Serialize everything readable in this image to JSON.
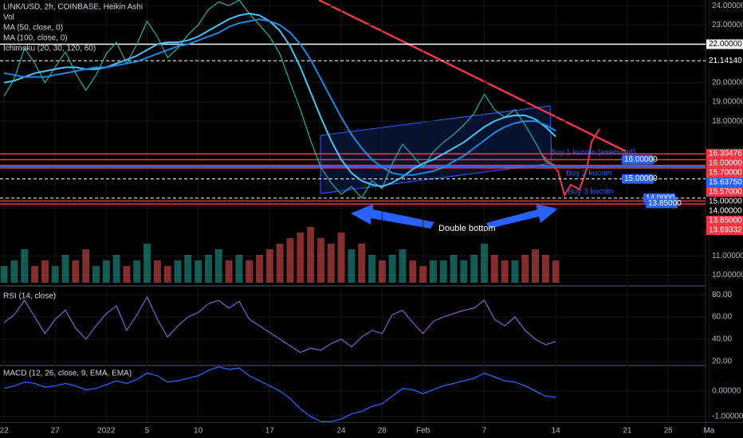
{
  "chart_data": [
    {
      "type": "line",
      "title": "LINK/USD, 2h, COINBASE, Heikin Ashi",
      "x": [
        0,
        1,
        2,
        3,
        4,
        5,
        6,
        7,
        8,
        9,
        10,
        11,
        12,
        13,
        14,
        15,
        16,
        17,
        18,
        19,
        20,
        21,
        22,
        23,
        24,
        25,
        26,
        27,
        28,
        29,
        30,
        31,
        32,
        33,
        34,
        35,
        36,
        37,
        38,
        39,
        40,
        41,
        42,
        43,
        44,
        45,
        46,
        47,
        48,
        49,
        50,
        51,
        52,
        53,
        54
      ],
      "xlim": [
        -0.4,
        68.5
      ],
      "xticks": [
        {
          "value": 0,
          "label": "22"
        },
        {
          "value": 5,
          "label": "27"
        },
        {
          "value": 10,
          "label": "2022"
        },
        {
          "value": 14,
          "label": "5"
        },
        {
          "value": 19,
          "label": "10"
        },
        {
          "value": 26,
          "label": "17"
        },
        {
          "value": 33,
          "label": "24"
        },
        {
          "value": 37,
          "label": "28"
        },
        {
          "value": 41,
          "label": "Feb"
        },
        {
          "value": 47,
          "label": "7"
        },
        {
          "value": 54,
          "label": "14"
        },
        {
          "value": 61,
          "label": "21"
        },
        {
          "value": 65,
          "label": "25"
        },
        {
          "value": 69,
          "label": "Ma"
        }
      ],
      "ylim": [
        9.6,
        24.3
      ],
      "yticks": [
        {
          "value": 24,
          "label": "24.00000"
        },
        {
          "value": 23,
          "label": "23.00000"
        },
        {
          "value": 20,
          "label": "20.00000"
        },
        {
          "value": 19,
          "label": "19.00000"
        },
        {
          "value": 18,
          "label": "18.00000"
        },
        {
          "value": 11,
          "label": "11.00000"
        },
        {
          "value": 10,
          "label": "10.00000"
        }
      ],
      "levels": [
        {
          "value": 22,
          "label": "22.00000",
          "color": "#ffffff",
          "dashed": false
        },
        {
          "value": 21.1414,
          "label": "21.14140",
          "color": "#ffffff",
          "dashed": true
        },
        {
          "value": 16.30476,
          "label": "16.30476",
          "color": "#f23645",
          "dashed": false
        },
        {
          "value": 16,
          "label": "16.00000",
          "color": "#f23645",
          "dashed": false
        },
        {
          "value": 15.7,
          "label": "15.70000",
          "color": "#f23645",
          "dashed": false
        },
        {
          "value": 15.6375,
          "label": "15.63750",
          "color": "#2962ff",
          "dashed": false
        },
        {
          "value": 15.57,
          "label": "15.57000",
          "color": "#f23645",
          "dashed": false
        },
        {
          "value": 15,
          "label": "15.00000",
          "color": "#ffffff",
          "dashed": true
        },
        {
          "value": 14,
          "label": "14.00000",
          "color": "#ffffff",
          "dashed": true
        },
        {
          "value": 13.85,
          "label": "13.85000",
          "color": "#f23645",
          "dashed": false
        },
        {
          "value": 13.69332,
          "label": "13.69332",
          "color": "#f23645",
          "dashed": false
        }
      ],
      "order_labels": [
        {
          "value": 16,
          "label": "16.00000"
        },
        {
          "value": 15,
          "label": "15.00000"
        },
        {
          "value": 14,
          "label": "14.0000"
        },
        {
          "value": 13.85,
          "label": "13.85000"
        }
      ],
      "annotations": [
        "Double bottom",
        "Buy 1 kucoin (executed)",
        "Buy 2 kucoin",
        "Buy 3 kucoin"
      ],
      "indicators": [
        "Ichimoku (20, 30, 120, 60)"
      ],
      "series": [
        {
          "color": "#26a69a",
          "values": [
            19.3,
            20.2,
            21.8,
            21.0,
            20.0,
            20.8,
            21.6,
            20.5,
            19.6,
            20.4,
            21.5,
            22.1,
            21.0,
            22.0,
            23.2,
            22.4,
            21.3,
            21.8,
            22.5,
            23.0,
            23.8,
            24.2,
            24.0,
            24.3,
            23.6,
            23.0,
            22.4,
            21.5,
            20.0,
            18.6,
            17.0,
            15.6,
            14.8,
            14.2,
            14.6,
            14.0,
            14.9,
            14.5,
            15.8,
            16.8,
            16.2,
            15.6,
            16.4,
            16.9,
            17.3,
            17.8,
            18.4,
            19.4,
            18.6,
            18.2,
            18.6,
            17.8,
            16.9,
            15.9,
            15.7
          ]
        },
        {
          "name": "MA (50, close, 0)",
          "color": "#4fc3f7",
          "values": [
            20.0,
            20.1,
            20.3,
            20.5,
            20.6,
            20.7,
            20.8,
            20.8,
            20.7,
            20.7,
            20.8,
            21.0,
            21.2,
            21.4,
            21.7,
            22.0,
            22.1,
            22.1,
            22.2,
            22.4,
            22.7,
            23.0,
            23.3,
            23.5,
            23.6,
            23.5,
            23.2,
            22.7,
            21.9,
            20.8,
            19.5,
            18.2,
            17.0,
            16.0,
            15.3,
            14.9,
            14.7,
            14.6,
            14.8,
            15.1,
            15.5,
            15.8,
            16.0,
            16.3,
            16.6,
            16.9,
            17.3,
            17.7,
            18.0,
            18.2,
            18.3,
            18.3,
            18.1,
            17.7,
            17.2
          ]
        },
        {
          "name": "MA (100, close, 0)",
          "color": "#1e88e5",
          "values": [
            20.5,
            20.4,
            20.3,
            20.3,
            20.3,
            20.4,
            20.5,
            20.6,
            20.7,
            20.8,
            20.8,
            20.9,
            21.0,
            21.1,
            21.3,
            21.5,
            21.7,
            21.9,
            22.0,
            22.2,
            22.4,
            22.6,
            22.9,
            23.1,
            23.2,
            23.3,
            23.2,
            23.0,
            22.6,
            22.0,
            21.2,
            20.2,
            19.2,
            18.2,
            17.3,
            16.6,
            16.0,
            15.6,
            15.3,
            15.2,
            15.2,
            15.3,
            15.4,
            15.6,
            15.9,
            16.2,
            16.6,
            17.0,
            17.4,
            17.7,
            17.9,
            18.0,
            18.0,
            17.8,
            17.5
          ]
        }
      ],
      "volume": {
        "name": "Vol",
        "values": [
          3,
          4,
          6,
          3,
          4,
          3,
          5,
          4,
          6,
          3,
          4,
          5,
          3,
          4,
          7,
          4,
          3,
          4,
          5,
          4,
          5,
          6,
          4,
          5,
          4,
          5,
          6,
          7,
          8,
          9,
          10,
          8,
          7,
          9,
          6,
          7,
          5,
          4,
          5,
          6,
          4,
          3,
          4,
          4,
          5,
          4,
          5,
          7,
          5,
          4,
          4,
          5,
          6,
          5,
          4
        ]
      }
    },
    {
      "type": "line",
      "title": "RSI (14, close)",
      "ylim": [
        17,
        85.1
      ],
      "yticks": [
        {
          "value": 80,
          "label": "80.00"
        },
        {
          "value": 60,
          "label": "60.00"
        },
        {
          "value": 40,
          "label": "40.00"
        },
        {
          "value": 20,
          "label": "20.00"
        }
      ],
      "series": [
        {
          "color": "#7e57c2",
          "values": [
            55,
            62,
            75,
            60,
            45,
            58,
            66,
            50,
            40,
            52,
            63,
            70,
            48,
            62,
            78,
            58,
            42,
            52,
            60,
            64,
            72,
            75,
            68,
            74,
            58,
            52,
            46,
            40,
            34,
            28,
            32,
            30,
            36,
            40,
            33,
            42,
            48,
            45,
            62,
            66,
            55,
            45,
            56,
            60,
            63,
            66,
            68,
            75,
            58,
            52,
            60,
            48,
            40,
            35,
            38
          ]
        }
      ]
    },
    {
      "type": "line",
      "title": "MACD (12, 26, close, 9, EMA, EMA)",
      "ylim": [
        -1.22,
        0.97
      ],
      "yticks": [
        {
          "value": 0,
          "label": "0.00000"
        },
        {
          "value": -1,
          "label": "-1.00000"
        }
      ],
      "series": [
        {
          "color": "#2962ff",
          "values": [
            0.1,
            0.2,
            0.35,
            0.3,
            0.15,
            0.2,
            0.3,
            0.2,
            0.05,
            0.1,
            0.25,
            0.4,
            0.3,
            0.45,
            0.7,
            0.6,
            0.35,
            0.4,
            0.5,
            0.6,
            0.8,
            0.95,
            0.85,
            0.9,
            0.6,
            0.4,
            0.2,
            0,
            -0.3,
            -0.7,
            -1.0,
            -1.2,
            -1.2,
            -1.1,
            -0.9,
            -0.8,
            -0.6,
            -0.5,
            -0.2,
            0.1,
            0.05,
            -0.1,
            0.05,
            0.2,
            0.3,
            0.4,
            0.5,
            0.7,
            0.55,
            0.4,
            0.35,
            0.2,
            0.0,
            -0.2,
            -0.25
          ]
        }
      ]
    }
  ]
}
